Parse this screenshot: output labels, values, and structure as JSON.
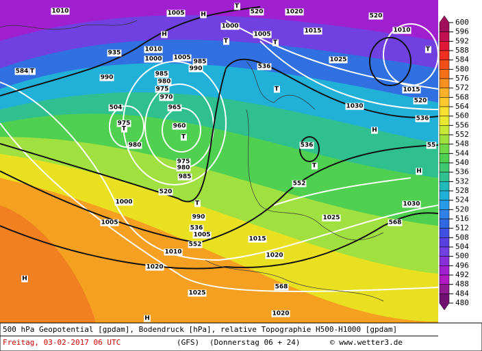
{
  "map": {
    "labels": [
      "1010",
      "1005",
      "H",
      "T",
      "520",
      "1020",
      "1015",
      "520",
      "1010",
      "T",
      "H",
      "1000",
      "T",
      "1005",
      "T",
      "935",
      "1010",
      "1000",
      "1005",
      "985",
      "990",
      "536",
      "1025",
      "584",
      "T",
      "990",
      "985",
      "980",
      "975",
      "970",
      "T",
      "1015",
      "520",
      "504",
      "965",
      "1030",
      "536",
      "975",
      "T",
      "960",
      "T",
      "H",
      "980",
      "536",
      "T",
      "55",
      "975",
      "980",
      "985",
      "H",
      "552",
      "520",
      "1000",
      "T",
      "1030",
      "990",
      "1025",
      "1005",
      "536",
      "568",
      "1005",
      "1015",
      "552",
      "1010",
      "1020",
      "1020",
      "H",
      "568",
      "1025",
      "1020",
      "H"
    ]
  },
  "legend": {
    "levels": [
      600,
      596,
      592,
      588,
      584,
      580,
      576,
      572,
      568,
      564,
      560,
      556,
      552,
      548,
      544,
      540,
      536,
      532,
      528,
      524,
      520,
      516,
      512,
      508,
      504,
      500,
      496,
      492,
      488,
      484,
      480
    ],
    "colors": [
      "#a0105a",
      "#c01050",
      "#e01838",
      "#f03020",
      "#f05018",
      "#f47018",
      "#f89020",
      "#fab028",
      "#fcc830",
      "#f8e030",
      "#e8e830",
      "#c8e838",
      "#a0e040",
      "#70d848",
      "#50d050",
      "#40c870",
      "#30c090",
      "#20b8b8",
      "#20b0d8",
      "#2898e8",
      "#3080e8",
      "#3068e0",
      "#4050e0",
      "#5840e0",
      "#7040e0",
      "#8830d8",
      "#a020d0",
      "#b018c0",
      "#901890",
      "#701070"
    ]
  },
  "footer": {
    "title": "500 hPa Geopotential [gpdam], Bodendruck [hPa], relative Topographie H500-H1000 [gpdam]",
    "date": "Freitag, 03-02-2017  06 UTC",
    "model": "(GFS)",
    "forecast": "(Donnerstag 06 + 24)",
    "credit": "© www.wetter3.de"
  }
}
